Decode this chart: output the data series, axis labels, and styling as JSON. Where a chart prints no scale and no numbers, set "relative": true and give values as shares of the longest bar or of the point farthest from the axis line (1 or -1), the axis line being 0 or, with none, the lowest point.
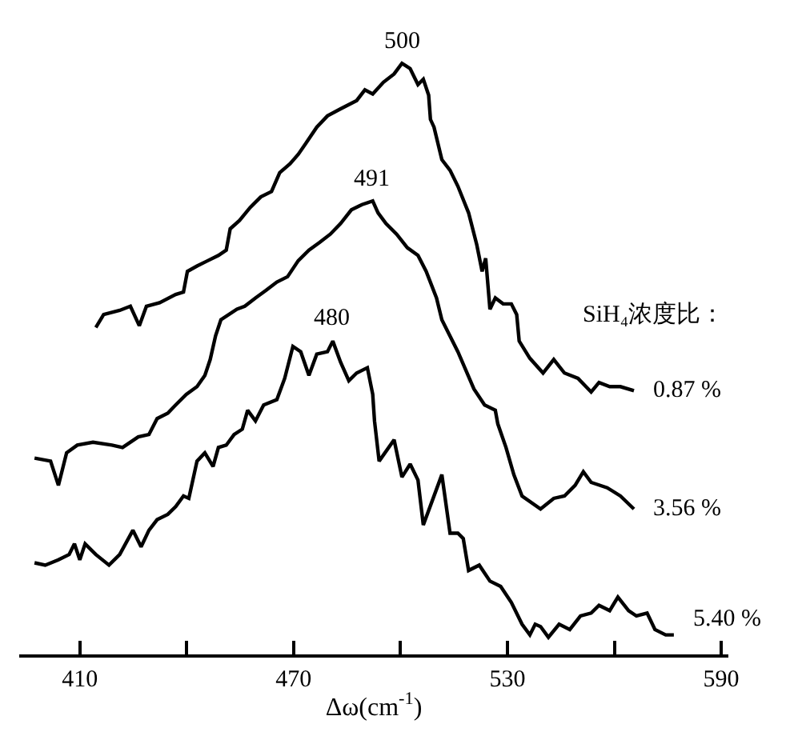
{
  "chart_data": {
    "type": "line",
    "relative": true,
    "xlabel": "Δω(cm$^{-1}$)",
    "legend_title": "SiH₄浓度比：",
    "xlim": [
      393,
      592
    ],
    "xticks": [
      410,
      {
        "value": 440,
        "label": null
      },
      470,
      {
        "value": 500,
        "label": null
      },
      530,
      {
        "value": 560,
        "label": null
      },
      590
    ],
    "legend": false,
    "marker": "none",
    "line_style": "solid",
    "annotations": [
      {
        "text": "500",
        "x": 500.4,
        "y": 1.0
      },
      {
        "text": "491",
        "x": 492.2,
        "y": 0.767
      },
      {
        "text": "480",
        "x": 481.0,
        "y": 0.53
      }
    ],
    "series": [
      {
        "name": "0.87 %",
        "color": "#000000",
        "x": [
          414.5,
          416.7,
          421.2,
          424.2,
          426.7,
          428.7,
          432.4,
          436.9,
          439.1,
          440.2,
          442.9,
          445.9,
          448.9,
          451.1,
          452.2,
          454.8,
          457.8,
          460.8,
          463.8,
          466.1,
          469.0,
          471.3,
          473.5,
          476.5,
          479.5,
          483.2,
          487.7,
          490.0,
          492.2,
          495.2,
          498.2,
          500.4,
          502.7,
          504.9,
          506.4,
          507.9,
          508.4,
          509.4,
          511.6,
          513.9,
          516.1,
          519.1,
          521.4,
          522.9,
          523.9,
          525.1,
          526.6,
          528.8,
          531.1,
          532.6,
          533.3,
          536.3,
          540.0,
          543.0,
          546.0,
          549.8,
          553.5,
          555.7,
          558.7,
          561.7,
          565.5
        ],
        "values": [
          0.553,
          0.575,
          0.582,
          0.589,
          0.556,
          0.589,
          0.595,
          0.609,
          0.613,
          0.648,
          0.657,
          0.666,
          0.675,
          0.684,
          0.72,
          0.734,
          0.756,
          0.774,
          0.783,
          0.815,
          0.83,
          0.846,
          0.865,
          0.892,
          0.911,
          0.923,
          0.937,
          0.955,
          0.948,
          0.968,
          0.982,
          1.0,
          0.991,
          0.964,
          0.973,
          0.946,
          0.905,
          0.892,
          0.837,
          0.819,
          0.792,
          0.747,
          0.693,
          0.648,
          0.67,
          0.584,
          0.603,
          0.593,
          0.593,
          0.575,
          0.53,
          0.501,
          0.476,
          0.499,
          0.476,
          0.467,
          0.444,
          0.46,
          0.453,
          0.453,
          0.446
        ]
      },
      {
        "name": "3.56 %",
        "color": "#000000",
        "x": [
          397.3,
          401.8,
          404.0,
          406.3,
          409.3,
          413.7,
          419.0,
          422.0,
          426.4,
          429.4,
          431.7,
          434.7,
          436.9,
          439.9,
          442.9,
          445.1,
          446.6,
          448.1,
          449.6,
          454.1,
          456.3,
          459.3,
          462.3,
          465.3,
          468.3,
          471.3,
          474.3,
          477.3,
          480.3,
          483.2,
          486.2,
          489.2,
          492.2,
          493.7,
          495.9,
          498.9,
          501.9,
          504.9,
          507.2,
          510.1,
          511.6,
          516.1,
          520.6,
          523.6,
          526.6,
          527.3,
          529.6,
          531.8,
          534.1,
          539.3,
          543.0,
          546.0,
          549.0,
          551.3,
          553.5,
          558.0,
          561.7,
          565.5
        ],
        "values": [
          0.332,
          0.327,
          0.286,
          0.341,
          0.354,
          0.359,
          0.354,
          0.35,
          0.368,
          0.372,
          0.399,
          0.408,
          0.422,
          0.44,
          0.453,
          0.472,
          0.499,
          0.539,
          0.566,
          0.584,
          0.589,
          0.603,
          0.616,
          0.63,
          0.639,
          0.666,
          0.684,
          0.697,
          0.711,
          0.729,
          0.752,
          0.761,
          0.767,
          0.747,
          0.729,
          0.711,
          0.688,
          0.675,
          0.648,
          0.603,
          0.566,
          0.512,
          0.449,
          0.422,
          0.413,
          0.39,
          0.35,
          0.304,
          0.268,
          0.246,
          0.264,
          0.268,
          0.286,
          0.309,
          0.291,
          0.282,
          0.268,
          0.246
        ]
      },
      {
        "name": "5.40 %",
        "color": "#000000",
        "x": [
          397.3,
          400.3,
          404.0,
          407.0,
          408.5,
          410.0,
          411.5,
          414.5,
          418.2,
          421.2,
          424.9,
          427.2,
          429.4,
          431.7,
          434.7,
          436.9,
          439.1,
          440.6,
          442.9,
          445.1,
          447.4,
          448.9,
          451.1,
          453.3,
          455.6,
          457.1,
          459.3,
          461.6,
          465.3,
          467.5,
          469.8,
          472.0,
          474.3,
          476.5,
          479.5,
          481.0,
          483.2,
          485.5,
          487.7,
          490.7,
          492.2,
          492.7,
          494.0,
          498.2,
          500.4,
          502.7,
          504.9,
          506.4,
          511.6,
          513.9,
          516.1,
          517.6,
          519.1,
          522.1,
          525.1,
          528.1,
          531.1,
          534.1,
          536.3,
          537.8,
          539.3,
          541.5,
          544.5,
          547.5,
          550.5,
          553.5,
          555.7,
          558.7,
          561.0,
          564.0,
          566.2,
          569.2,
          571.4,
          574.4,
          576.7
        ],
        "values": [
          0.155,
          0.151,
          0.16,
          0.169,
          0.187,
          0.16,
          0.187,
          0.169,
          0.151,
          0.169,
          0.21,
          0.182,
          0.21,
          0.228,
          0.237,
          0.25,
          0.268,
          0.264,
          0.327,
          0.341,
          0.318,
          0.35,
          0.354,
          0.372,
          0.381,
          0.413,
          0.395,
          0.422,
          0.431,
          0.467,
          0.521,
          0.512,
          0.472,
          0.508,
          0.512,
          0.53,
          0.494,
          0.463,
          0.476,
          0.485,
          0.44,
          0.395,
          0.327,
          0.363,
          0.3,
          0.322,
          0.295,
          0.219,
          0.304,
          0.205,
          0.205,
          0.196,
          0.142,
          0.151,
          0.124,
          0.115,
          0.088,
          0.051,
          0.033,
          0.051,
          0.047,
          0.029,
          0.051,
          0.042,
          0.065,
          0.07,
          0.083,
          0.074,
          0.097,
          0.074,
          0.065,
          0.07,
          0.042,
          0.033,
          0.033
        ]
      }
    ]
  }
}
